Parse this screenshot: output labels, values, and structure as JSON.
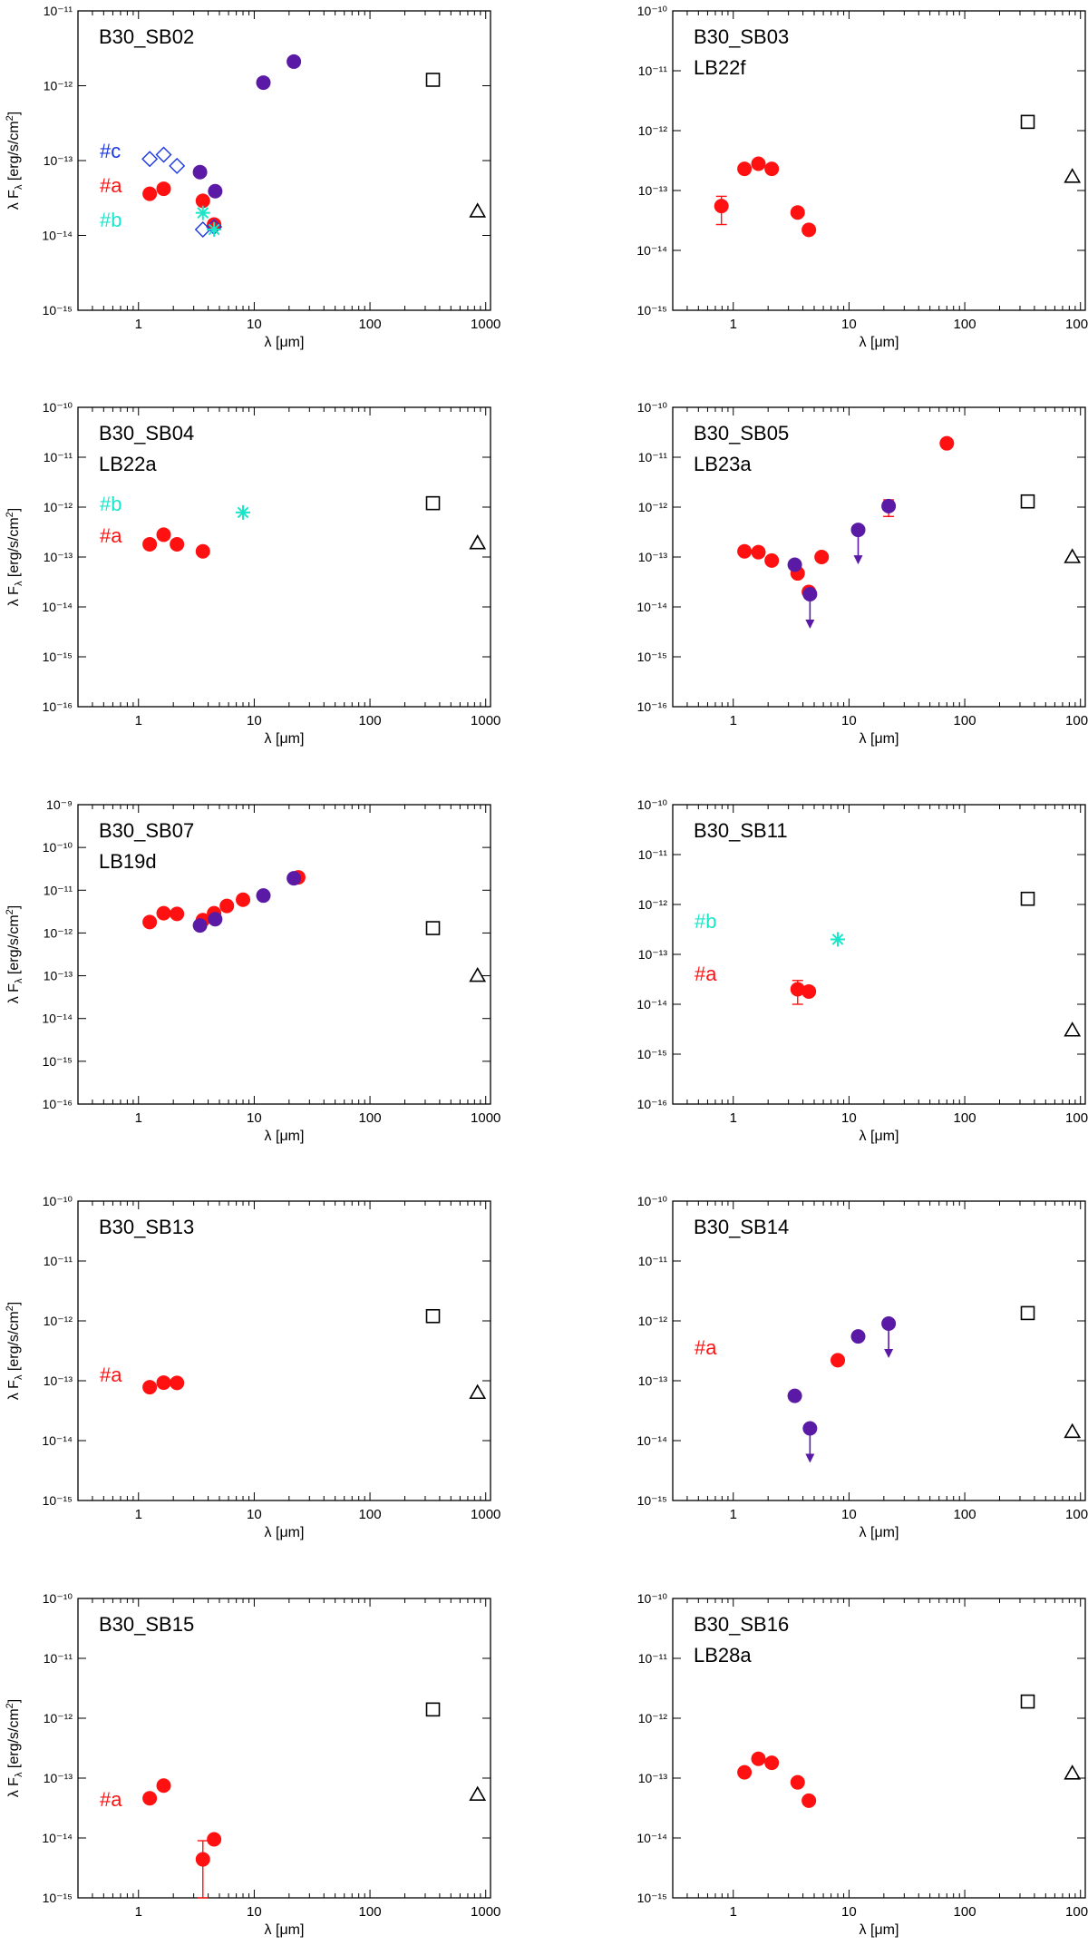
{
  "figure": {
    "xlabel": "λ [μm]",
    "ylabel": "λ F",
    "ylabel_sub": "λ",
    "ylabel_unit": "[erg/s/cm",
    "ylabel_unit_sup": "2",
    "ylabel_close": "]"
  },
  "colors": {
    "red": "#ff1111",
    "purple": "#5a1aa6",
    "cyan": "#19e6c8",
    "blue": "#1a37e0",
    "black": "#000000"
  },
  "chart_data": [
    {
      "type": "scatter",
      "title": "B30_SB02",
      "subtitle": "",
      "xlabel": "λ [μm]",
      "ylabel": "λ Fλ [erg/s/cm2]",
      "xscale": "log",
      "yscale": "log",
      "xlim": [
        0.3,
        1100
      ],
      "ylim_exp": [
        -15,
        -11
      ],
      "x_ticks": [
        "1",
        "10",
        "100",
        "1000"
      ],
      "legend": [
        {
          "label": "#c",
          "color": "blue"
        },
        {
          "label": "#a",
          "color": "red"
        },
        {
          "label": "#b",
          "color": "cyan"
        }
      ],
      "series": [
        {
          "name": "#a",
          "marker": "circle",
          "color": "red",
          "points": [
            [
              1.25,
              3.6e-14
            ],
            [
              1.65,
              4.2e-14
            ],
            [
              3.6,
              2.9e-14
            ],
            [
              4.5,
              1.4e-14
            ]
          ]
        },
        {
          "name": "",
          "marker": "circle",
          "color": "purple",
          "points": [
            [
              3.4,
              7e-14
            ],
            [
              4.6,
              3.9e-14
            ],
            [
              12,
              1.1e-12
            ],
            [
              22,
              2.1e-12
            ]
          ]
        },
        {
          "name": "#c",
          "marker": "diamond",
          "color": "blue",
          "points": [
            [
              1.25,
              1.05e-13
            ],
            [
              1.65,
              1.2e-13
            ],
            [
              2.15,
              8.5e-14
            ],
            [
              3.6,
              1.2e-14
            ],
            [
              4.5,
              1.3e-14
            ]
          ]
        },
        {
          "name": "#b",
          "marker": "asterisk",
          "color": "cyan",
          "points": [
            [
              3.6,
              2e-14
            ],
            [
              4.5,
              1.2e-14
            ]
          ]
        },
        {
          "name": "",
          "marker": "square",
          "color": "black",
          "points": [
            [
              350,
              1.2e-12
            ]
          ]
        },
        {
          "name": "",
          "marker": "triangle",
          "color": "black",
          "points": [
            [
              850,
              2.1e-14
            ]
          ]
        }
      ],
      "upper_limits": []
    },
    {
      "type": "scatter",
      "title": "B30_SB03",
      "subtitle": "LB22f",
      "xlabel": "λ [μm]",
      "ylabel": "",
      "xscale": "log",
      "yscale": "log",
      "xlim": [
        0.3,
        1100
      ],
      "ylim_exp": [
        -15,
        -10
      ],
      "x_ticks": [
        "1",
        "10",
        "100",
        "1000"
      ],
      "legend": [],
      "series": [
        {
          "name": "",
          "marker": "circle",
          "color": "red",
          "points": [
            [
              0.79,
              5.5e-14
            ],
            [
              1.25,
              2.3e-13
            ],
            [
              1.65,
              2.8e-13
            ],
            [
              2.15,
              2.3e-13
            ],
            [
              3.6,
              4.3e-14
            ],
            [
              4.5,
              2.2e-14
            ]
          ]
        },
        {
          "name": "",
          "marker": "square",
          "color": "black",
          "points": [
            [
              350,
              1.4e-12
            ]
          ]
        },
        {
          "name": "",
          "marker": "triangle",
          "color": "black",
          "points": [
            [
              850,
              1.7e-13
            ]
          ]
        }
      ],
      "error_bars": [
        [
          0.79,
          2.7e-14,
          8e-14
        ],
        [
          4.5,
          1.9e-14,
          2.6e-14
        ]
      ],
      "upper_limits": []
    },
    {
      "type": "scatter",
      "title": "B30_SB04",
      "subtitle": "LB22a",
      "xlabel": "λ [μm]",
      "ylabel": "λ Fλ [erg/s/cm2]",
      "xscale": "log",
      "yscale": "log",
      "xlim": [
        0.3,
        1100
      ],
      "ylim_exp": [
        -16,
        -10
      ],
      "x_ticks": [
        "1",
        "10",
        "100",
        "1000"
      ],
      "legend": [
        {
          "label": "#b",
          "color": "cyan"
        },
        {
          "label": "#a",
          "color": "red"
        }
      ],
      "series": [
        {
          "name": "#a",
          "marker": "circle",
          "color": "red",
          "points": [
            [
              1.25,
              1.8e-13
            ],
            [
              1.65,
              2.8e-13
            ],
            [
              2.15,
              1.8e-13
            ],
            [
              3.6,
              1.3e-13
            ]
          ]
        },
        {
          "name": "#b",
          "marker": "asterisk",
          "color": "cyan",
          "points": [
            [
              8.0,
              7.8e-13
            ]
          ]
        },
        {
          "name": "",
          "marker": "square",
          "color": "black",
          "points": [
            [
              350,
              1.2e-12
            ]
          ]
        },
        {
          "name": "",
          "marker": "triangle",
          "color": "black",
          "points": [
            [
              850,
              1.9e-13
            ]
          ]
        }
      ],
      "upper_limits": []
    },
    {
      "type": "scatter",
      "title": "B30_SB05",
      "subtitle": "LB23a",
      "xlabel": "λ [μm]",
      "ylabel": "",
      "xscale": "log",
      "yscale": "log",
      "xlim": [
        0.3,
        1100
      ],
      "ylim_exp": [
        -16,
        -10
      ],
      "x_ticks": [
        "1",
        "10",
        "100",
        "1000"
      ],
      "legend": [],
      "series": [
        {
          "name": "",
          "marker": "circle",
          "color": "red",
          "points": [
            [
              1.25,
              1.3e-13
            ],
            [
              1.65,
              1.25e-13
            ],
            [
              2.15,
              8.5e-14
            ],
            [
              3.6,
              4.7e-14
            ],
            [
              4.5,
              2e-14
            ],
            [
              5.8,
              1e-13
            ],
            [
              70,
              1.9e-11
            ]
          ]
        },
        {
          "name": "",
          "marker": "circle",
          "color": "purple",
          "points": [
            [
              3.4,
              7e-14
            ],
            [
              4.6,
              1.8e-14
            ],
            [
              12,
              3.5e-13
            ],
            [
              22,
              1.05e-12
            ]
          ]
        },
        {
          "name": "",
          "marker": "square",
          "color": "black",
          "points": [
            [
              350,
              1.3e-12
            ]
          ]
        },
        {
          "name": "",
          "marker": "triangle",
          "color": "black",
          "points": [
            [
              850,
              1e-13
            ]
          ]
        }
      ],
      "error_bars": [
        [
          22,
          6.5e-13,
          1.4e-12
        ]
      ],
      "upper_limits": [
        [
          4.6,
          1.8e-14
        ],
        [
          12,
          3.5e-13
        ]
      ]
    },
    {
      "type": "scatter",
      "title": "B30_SB07",
      "subtitle": "LB19d",
      "xlabel": "λ [μm]",
      "ylabel": "λ Fλ [erg/s/cm2]",
      "xscale": "log",
      "yscale": "log",
      "xlim": [
        0.3,
        1100
      ],
      "ylim_exp": [
        -16,
        -9
      ],
      "x_ticks": [
        "1",
        "10",
        "100",
        "1000"
      ],
      "legend": [],
      "series": [
        {
          "name": "",
          "marker": "circle",
          "color": "red",
          "points": [
            [
              1.25,
              1.8e-12
            ],
            [
              1.65,
              2.9e-12
            ],
            [
              2.15,
              2.8e-12
            ],
            [
              3.6,
              2e-12
            ],
            [
              4.5,
              2.9e-12
            ],
            [
              5.8,
              4.3e-12
            ],
            [
              8.0,
              6e-12
            ],
            [
              24,
              2e-11
            ]
          ]
        },
        {
          "name": "",
          "marker": "circle",
          "color": "purple",
          "points": [
            [
              3.4,
              1.5e-12
            ],
            [
              4.6,
              2.1e-12
            ],
            [
              12,
              7.5e-12
            ],
            [
              22,
              1.9e-11
            ]
          ]
        },
        {
          "name": "",
          "marker": "square",
          "color": "black",
          "points": [
            [
              350,
              1.3e-12
            ]
          ]
        },
        {
          "name": "",
          "marker": "triangle",
          "color": "black",
          "points": [
            [
              850,
              1e-13
            ]
          ]
        }
      ],
      "upper_limits": []
    },
    {
      "type": "scatter",
      "title": "B30_SB11",
      "subtitle": "",
      "xlabel": "λ [μm]",
      "ylabel": "",
      "xscale": "log",
      "yscale": "log",
      "xlim": [
        0.3,
        1100
      ],
      "ylim_exp": [
        -16,
        -10
      ],
      "x_ticks": [
        "1",
        "10",
        "100",
        "1000"
      ],
      "legend": [
        {
          "label": "#b",
          "color": "cyan"
        },
        {
          "label": "#a",
          "color": "red"
        }
      ],
      "series": [
        {
          "name": "#a",
          "marker": "circle",
          "color": "red",
          "points": [
            [
              3.6,
              2e-14
            ],
            [
              4.5,
              1.8e-14
            ]
          ]
        },
        {
          "name": "#b",
          "marker": "asterisk",
          "color": "cyan",
          "points": [
            [
              8.0,
              2e-13
            ]
          ]
        },
        {
          "name": "",
          "marker": "square",
          "color": "black",
          "points": [
            [
              350,
              1.3e-12
            ]
          ]
        },
        {
          "name": "",
          "marker": "triangle",
          "color": "black",
          "points": [
            [
              850,
              3e-15
            ]
          ]
        }
      ],
      "error_bars": [
        [
          3.6,
          1e-14,
          3e-14
        ]
      ],
      "upper_limits": []
    },
    {
      "type": "scatter",
      "title": "B30_SB13",
      "subtitle": "",
      "xlabel": "λ [μm]",
      "ylabel": "λ Fλ [erg/s/cm2]",
      "xscale": "log",
      "yscale": "log",
      "xlim": [
        0.3,
        1100
      ],
      "ylim_exp": [
        -15,
        -10
      ],
      "x_ticks": [
        "1",
        "10",
        "100",
        "1000"
      ],
      "legend": [
        {
          "label": "#a",
          "color": "red"
        }
      ],
      "series": [
        {
          "name": "#a",
          "marker": "circle",
          "color": "red",
          "points": [
            [
              1.25,
              7.8e-14
            ],
            [
              1.65,
              9.3e-14
            ],
            [
              2.15,
              9.2e-14
            ]
          ]
        },
        {
          "name": "",
          "marker": "square",
          "color": "black",
          "points": [
            [
              350,
              1.2e-12
            ]
          ]
        },
        {
          "name": "",
          "marker": "triangle",
          "color": "black",
          "points": [
            [
              850,
              6.3e-14
            ]
          ]
        }
      ],
      "upper_limits": []
    },
    {
      "type": "scatter",
      "title": "B30_SB14",
      "subtitle": "",
      "xlabel": "λ [μm]",
      "ylabel": "",
      "xscale": "log",
      "yscale": "log",
      "xlim": [
        0.3,
        1100
      ],
      "ylim_exp": [
        -15,
        -10
      ],
      "x_ticks": [
        "1",
        "10",
        "100",
        "1000"
      ],
      "legend": [
        {
          "label": "#a",
          "color": "red"
        }
      ],
      "series": [
        {
          "name": "#a",
          "marker": "circle",
          "color": "red",
          "points": [
            [
              8.0,
              2.2e-13
            ]
          ]
        },
        {
          "name": "",
          "marker": "circle",
          "color": "purple",
          "points": [
            [
              3.4,
              5.6e-14
            ],
            [
              4.6,
              1.6e-14
            ],
            [
              12,
              5.5e-13
            ],
            [
              22,
              9e-13
            ]
          ]
        },
        {
          "name": "",
          "marker": "square",
          "color": "black",
          "points": [
            [
              350,
              1.35e-12
            ]
          ]
        },
        {
          "name": "",
          "marker": "triangle",
          "color": "black",
          "points": [
            [
              850,
              1.4e-14
            ]
          ]
        }
      ],
      "upper_limits": [
        [
          4.6,
          1.6e-14
        ],
        [
          22,
          9e-13
        ]
      ]
    },
    {
      "type": "scatter",
      "title": "B30_SB15",
      "subtitle": "",
      "xlabel": "λ [μm]",
      "ylabel": "λ Fλ [erg/s/cm2]",
      "xscale": "log",
      "yscale": "log",
      "xlim": [
        0.3,
        1100
      ],
      "ylim_exp": [
        -15,
        -10
      ],
      "x_ticks": [
        "1",
        "10",
        "100",
        "1000"
      ],
      "legend": [
        {
          "label": "#a",
          "color": "red"
        }
      ],
      "series": [
        {
          "name": "#a",
          "marker": "circle",
          "color": "red",
          "points": [
            [
              1.25,
              4.6e-14
            ],
            [
              1.65,
              7.5e-14
            ],
            [
              3.6,
              4.4e-15
            ],
            [
              4.5,
              9.5e-15
            ]
          ]
        },
        {
          "name": "",
          "marker": "square",
          "color": "black",
          "points": [
            [
              350,
              1.4e-12
            ]
          ]
        },
        {
          "name": "",
          "marker": "triangle",
          "color": "black",
          "points": [
            [
              850,
              5.3e-14
            ]
          ]
        }
      ],
      "error_bars": [
        [
          3.6,
          1e-15,
          9e-15
        ]
      ],
      "upper_limits": []
    },
    {
      "type": "scatter",
      "title": "B30_SB16",
      "subtitle": "LB28a",
      "xlabel": "λ [μm]",
      "ylabel": "",
      "xscale": "log",
      "yscale": "log",
      "xlim": [
        0.3,
        1100
      ],
      "ylim_exp": [
        -15,
        -10
      ],
      "x_ticks": [
        "1",
        "10",
        "100",
        "1000"
      ],
      "legend": [],
      "series": [
        {
          "name": "",
          "marker": "circle",
          "color": "red",
          "points": [
            [
              1.25,
              1.25e-13
            ],
            [
              1.65,
              2.1e-13
            ],
            [
              2.15,
              1.8e-13
            ],
            [
              3.6,
              8.5e-14
            ],
            [
              4.5,
              4.2e-14
            ]
          ]
        },
        {
          "name": "",
          "marker": "square",
          "color": "black",
          "points": [
            [
              350,
              1.9e-12
            ]
          ]
        },
        {
          "name": "",
          "marker": "triangle",
          "color": "black",
          "points": [
            [
              850,
              1.2e-13
            ]
          ]
        }
      ],
      "upper_limits": []
    }
  ]
}
